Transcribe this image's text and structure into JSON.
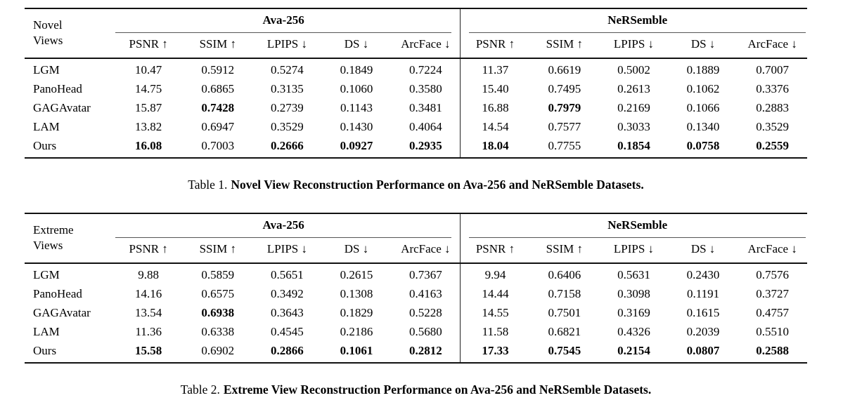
{
  "page": {
    "background": "#ffffff",
    "text_color": "#000000",
    "heavy_rule_color": "#111111",
    "light_rule_color": "#555555"
  },
  "tables": [
    {
      "name": "novel-views",
      "row_header_line1": "Novel",
      "row_header_line2": "Views",
      "groups": [
        "Ava-256",
        "NeRSemble"
      ],
      "metrics": [
        "PSNR ↑",
        "SSIM ↑",
        "LPIPS ↓",
        "DS ↓",
        "ArcFace ↓"
      ],
      "rows": [
        {
          "method": "LGM",
          "values": [
            "10.47",
            "0.5912",
            "0.5274",
            "0.1849",
            "0.7224",
            "11.37",
            "0.6619",
            "0.5002",
            "0.1889",
            "0.7007"
          ],
          "bold": [
            false,
            false,
            false,
            false,
            false,
            false,
            false,
            false,
            false,
            false
          ]
        },
        {
          "method": "PanoHead",
          "values": [
            "14.75",
            "0.6865",
            "0.3135",
            "0.1060",
            "0.3580",
            "15.40",
            "0.7495",
            "0.2613",
            "0.1062",
            "0.3376"
          ],
          "bold": [
            false,
            false,
            false,
            false,
            false,
            false,
            false,
            false,
            false,
            false
          ]
        },
        {
          "method": "GAGAvatar",
          "values": [
            "15.87",
            "0.7428",
            "0.2739",
            "0.1143",
            "0.3481",
            "16.88",
            "0.7979",
            "0.2169",
            "0.1066",
            "0.2883"
          ],
          "bold": [
            false,
            true,
            false,
            false,
            false,
            false,
            true,
            false,
            false,
            false
          ]
        },
        {
          "method": "LAM",
          "values": [
            "13.82",
            "0.6947",
            "0.3529",
            "0.1430",
            "0.4064",
            "14.54",
            "0.7577",
            "0.3033",
            "0.1340",
            "0.3529"
          ],
          "bold": [
            false,
            false,
            false,
            false,
            false,
            false,
            false,
            false,
            false,
            false
          ]
        },
        {
          "method": "Ours",
          "values": [
            "16.08",
            "0.7003",
            "0.2666",
            "0.0927",
            "0.2935",
            "18.04",
            "0.7755",
            "0.1854",
            "0.0758",
            "0.2559"
          ],
          "bold": [
            true,
            false,
            true,
            true,
            true,
            true,
            false,
            true,
            true,
            true
          ]
        }
      ],
      "caption_label": "Table 1.",
      "caption_text": "Novel View Reconstruction Performance on Ava-256 and NeRSemble Datasets."
    },
    {
      "name": "extreme-views",
      "row_header_line1": "Extreme",
      "row_header_line2": "Views",
      "groups": [
        "Ava-256",
        "NeRSemble"
      ],
      "metrics": [
        "PSNR ↑",
        "SSIM ↑",
        "LPIPS ↓",
        "DS ↓",
        "ArcFace ↓"
      ],
      "rows": [
        {
          "method": "LGM",
          "values": [
            "9.88",
            "0.5859",
            "0.5651",
            "0.2615",
            "0.7367",
            "9.94",
            "0.6406",
            "0.5631",
            "0.2430",
            "0.7576"
          ],
          "bold": [
            false,
            false,
            false,
            false,
            false,
            false,
            false,
            false,
            false,
            false
          ]
        },
        {
          "method": "PanoHead",
          "values": [
            "14.16",
            "0.6575",
            "0.3492",
            "0.1308",
            "0.4163",
            "14.44",
            "0.7158",
            "0.3098",
            "0.1191",
            "0.3727"
          ],
          "bold": [
            false,
            false,
            false,
            false,
            false,
            false,
            false,
            false,
            false,
            false
          ]
        },
        {
          "method": "GAGAvatar",
          "values": [
            "13.54",
            "0.6938",
            "0.3643",
            "0.1829",
            "0.5228",
            "14.55",
            "0.7501",
            "0.3169",
            "0.1615",
            "0.4757"
          ],
          "bold": [
            false,
            true,
            false,
            false,
            false,
            false,
            false,
            false,
            false,
            false
          ]
        },
        {
          "method": "LAM",
          "values": [
            "11.36",
            "0.6338",
            "0.4545",
            "0.2186",
            "0.5680",
            "11.58",
            "0.6821",
            "0.4326",
            "0.2039",
            "0.5510"
          ],
          "bold": [
            false,
            false,
            false,
            false,
            false,
            false,
            false,
            false,
            false,
            false
          ]
        },
        {
          "method": "Ours",
          "values": [
            "15.58",
            "0.6902",
            "0.2866",
            "0.1061",
            "0.2812",
            "17.33",
            "0.7545",
            "0.2154",
            "0.0807",
            "0.2588"
          ],
          "bold": [
            true,
            false,
            true,
            true,
            true,
            true,
            true,
            true,
            true,
            true
          ]
        }
      ],
      "caption_label": "Table 2.",
      "caption_text": "Extreme View Reconstruction Performance on Ava-256 and NeRSemble Datasets."
    }
  ]
}
